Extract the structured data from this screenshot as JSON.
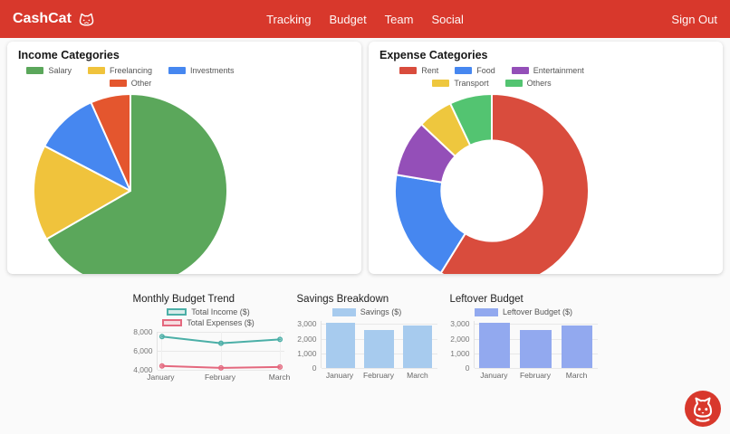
{
  "header": {
    "brand": "CashCat",
    "nav": [
      "Tracking",
      "Budget",
      "Team",
      "Social"
    ],
    "sign_out": "Sign Out"
  },
  "colors": {
    "header_bg": "#d8382c",
    "fab_bg": "#d8382c",
    "grid": "#e8e8e8",
    "tick_text": "#777777",
    "legend_text": "#555555"
  },
  "chart_data": [
    {
      "id": "income",
      "type": "pie",
      "title": "Income Categories",
      "categories": [
        "Salary",
        "Freelancing",
        "Investments",
        "Other"
      ],
      "values": [
        5000,
        1200,
        800,
        500
      ],
      "colors": [
        "#5ba75b",
        "#f0c33c",
        "#4687f0",
        "#e4562e"
      ],
      "legend_position": "top"
    },
    {
      "id": "expense",
      "type": "doughnut",
      "title": "Expense Categories",
      "categories": [
        "Rent",
        "Food",
        "Entertainment",
        "Transport",
        "Others"
      ],
      "values": [
        2500,
        800,
        400,
        250,
        300
      ],
      "colors": [
        "#d94c3d",
        "#4687f0",
        "#944fb8",
        "#eec73e",
        "#53c471"
      ],
      "cutout": 0.52,
      "legend_position": "top"
    },
    {
      "id": "trend",
      "type": "line",
      "title": "Monthly Budget Trend",
      "categories": [
        "January",
        "February",
        "March"
      ],
      "series": [
        {
          "name": "Total Income ($)",
          "values": [
            7500,
            6800,
            7200
          ],
          "color": "#4bafa7"
        },
        {
          "name": "Total Expenses ($)",
          "values": [
            4400,
            4200,
            4300
          ],
          "color": "#e4687e"
        }
      ],
      "ylim": [
        4000,
        8000
      ],
      "yticks": [
        {
          "v": 8000,
          "t": "8,000"
        },
        {
          "v": 6000,
          "t": "6,000"
        },
        {
          "v": 4000,
          "t": "4,000"
        }
      ],
      "grid": true,
      "legend_position": "top"
    },
    {
      "id": "savings",
      "type": "bar",
      "title": "Savings Breakdown",
      "categories": [
        "January",
        "February",
        "March"
      ],
      "series": [
        {
          "name": "Savings ($)",
          "values": [
            3100,
            2600,
            2900
          ],
          "color": "#a7cbee"
        }
      ],
      "ylim": [
        0,
        3200
      ],
      "yticks": [
        {
          "v": 3000,
          "t": "3,000"
        },
        {
          "v": 2000,
          "t": "2,000"
        },
        {
          "v": 1000,
          "t": "1,000"
        },
        {
          "v": 0,
          "t": "0"
        }
      ],
      "grid": true,
      "legend_position": "top"
    },
    {
      "id": "leftover",
      "type": "bar",
      "title": "Leftover Budget",
      "categories": [
        "January",
        "February",
        "March"
      ],
      "series": [
        {
          "name": "Leftover Budget ($)",
          "values": [
            3100,
            2600,
            2900
          ],
          "color": "#92a9ef"
        }
      ],
      "ylim": [
        0,
        3200
      ],
      "yticks": [
        {
          "v": 3000,
          "t": "3,000"
        },
        {
          "v": 2000,
          "t": "2,000"
        },
        {
          "v": 1000,
          "t": "1,000"
        },
        {
          "v": 0,
          "t": "0"
        }
      ],
      "grid": true,
      "legend_position": "top"
    }
  ]
}
